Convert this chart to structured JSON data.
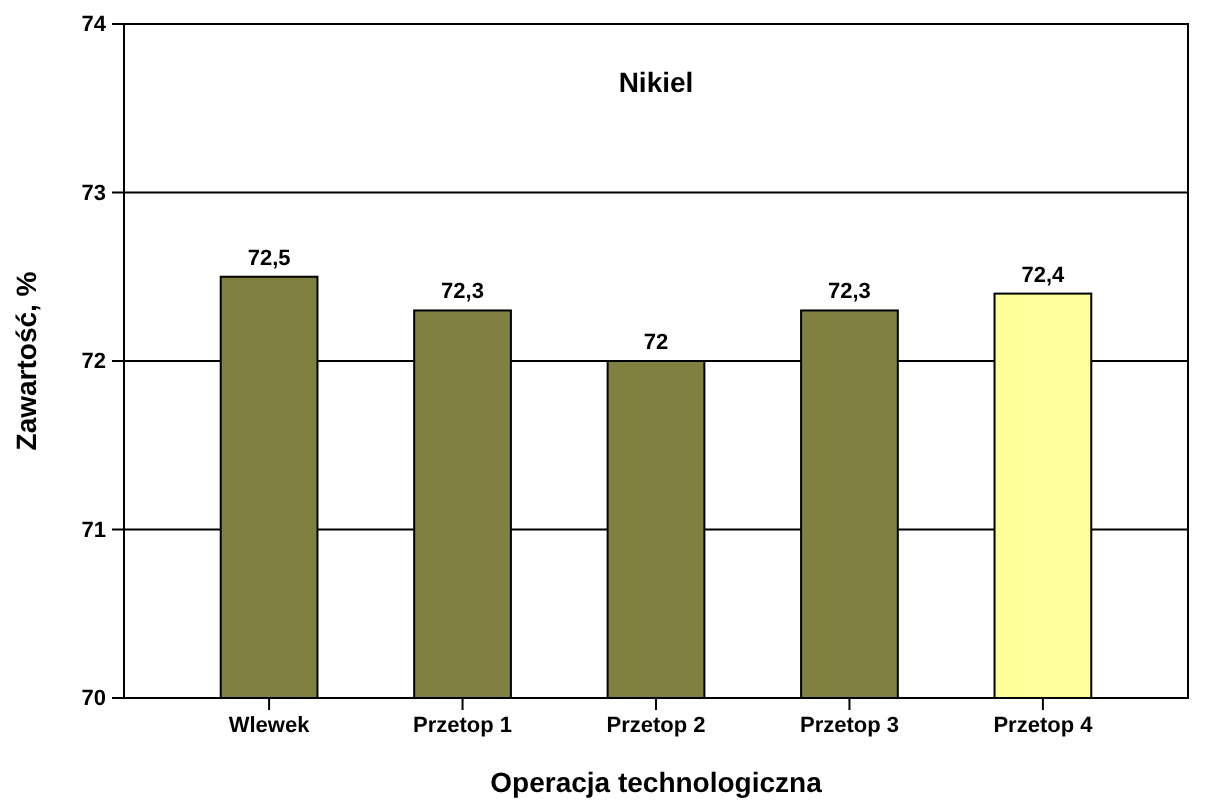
{
  "chart_data": {
    "type": "bar",
    "title": "Nikiel",
    "xlabel": "Operacja technologiczna",
    "ylabel": "Zawartość, %",
    "categories": [
      "Wlewek",
      "Przetop 1",
      "Przetop 2",
      "Przetop 3",
      "Przetop 4"
    ],
    "values": [
      72.5,
      72.3,
      72,
      72.3,
      72.4
    ],
    "colors": [
      "#808040",
      "#808040",
      "#808040",
      "#808040",
      "#ffff99"
    ],
    "value_labels": [
      "72,5",
      "72,3",
      "72",
      "72,3",
      "72,4"
    ],
    "ylim": [
      70,
      74
    ],
    "yticks": [
      70,
      71,
      72,
      73,
      74
    ],
    "grid": "y"
  }
}
